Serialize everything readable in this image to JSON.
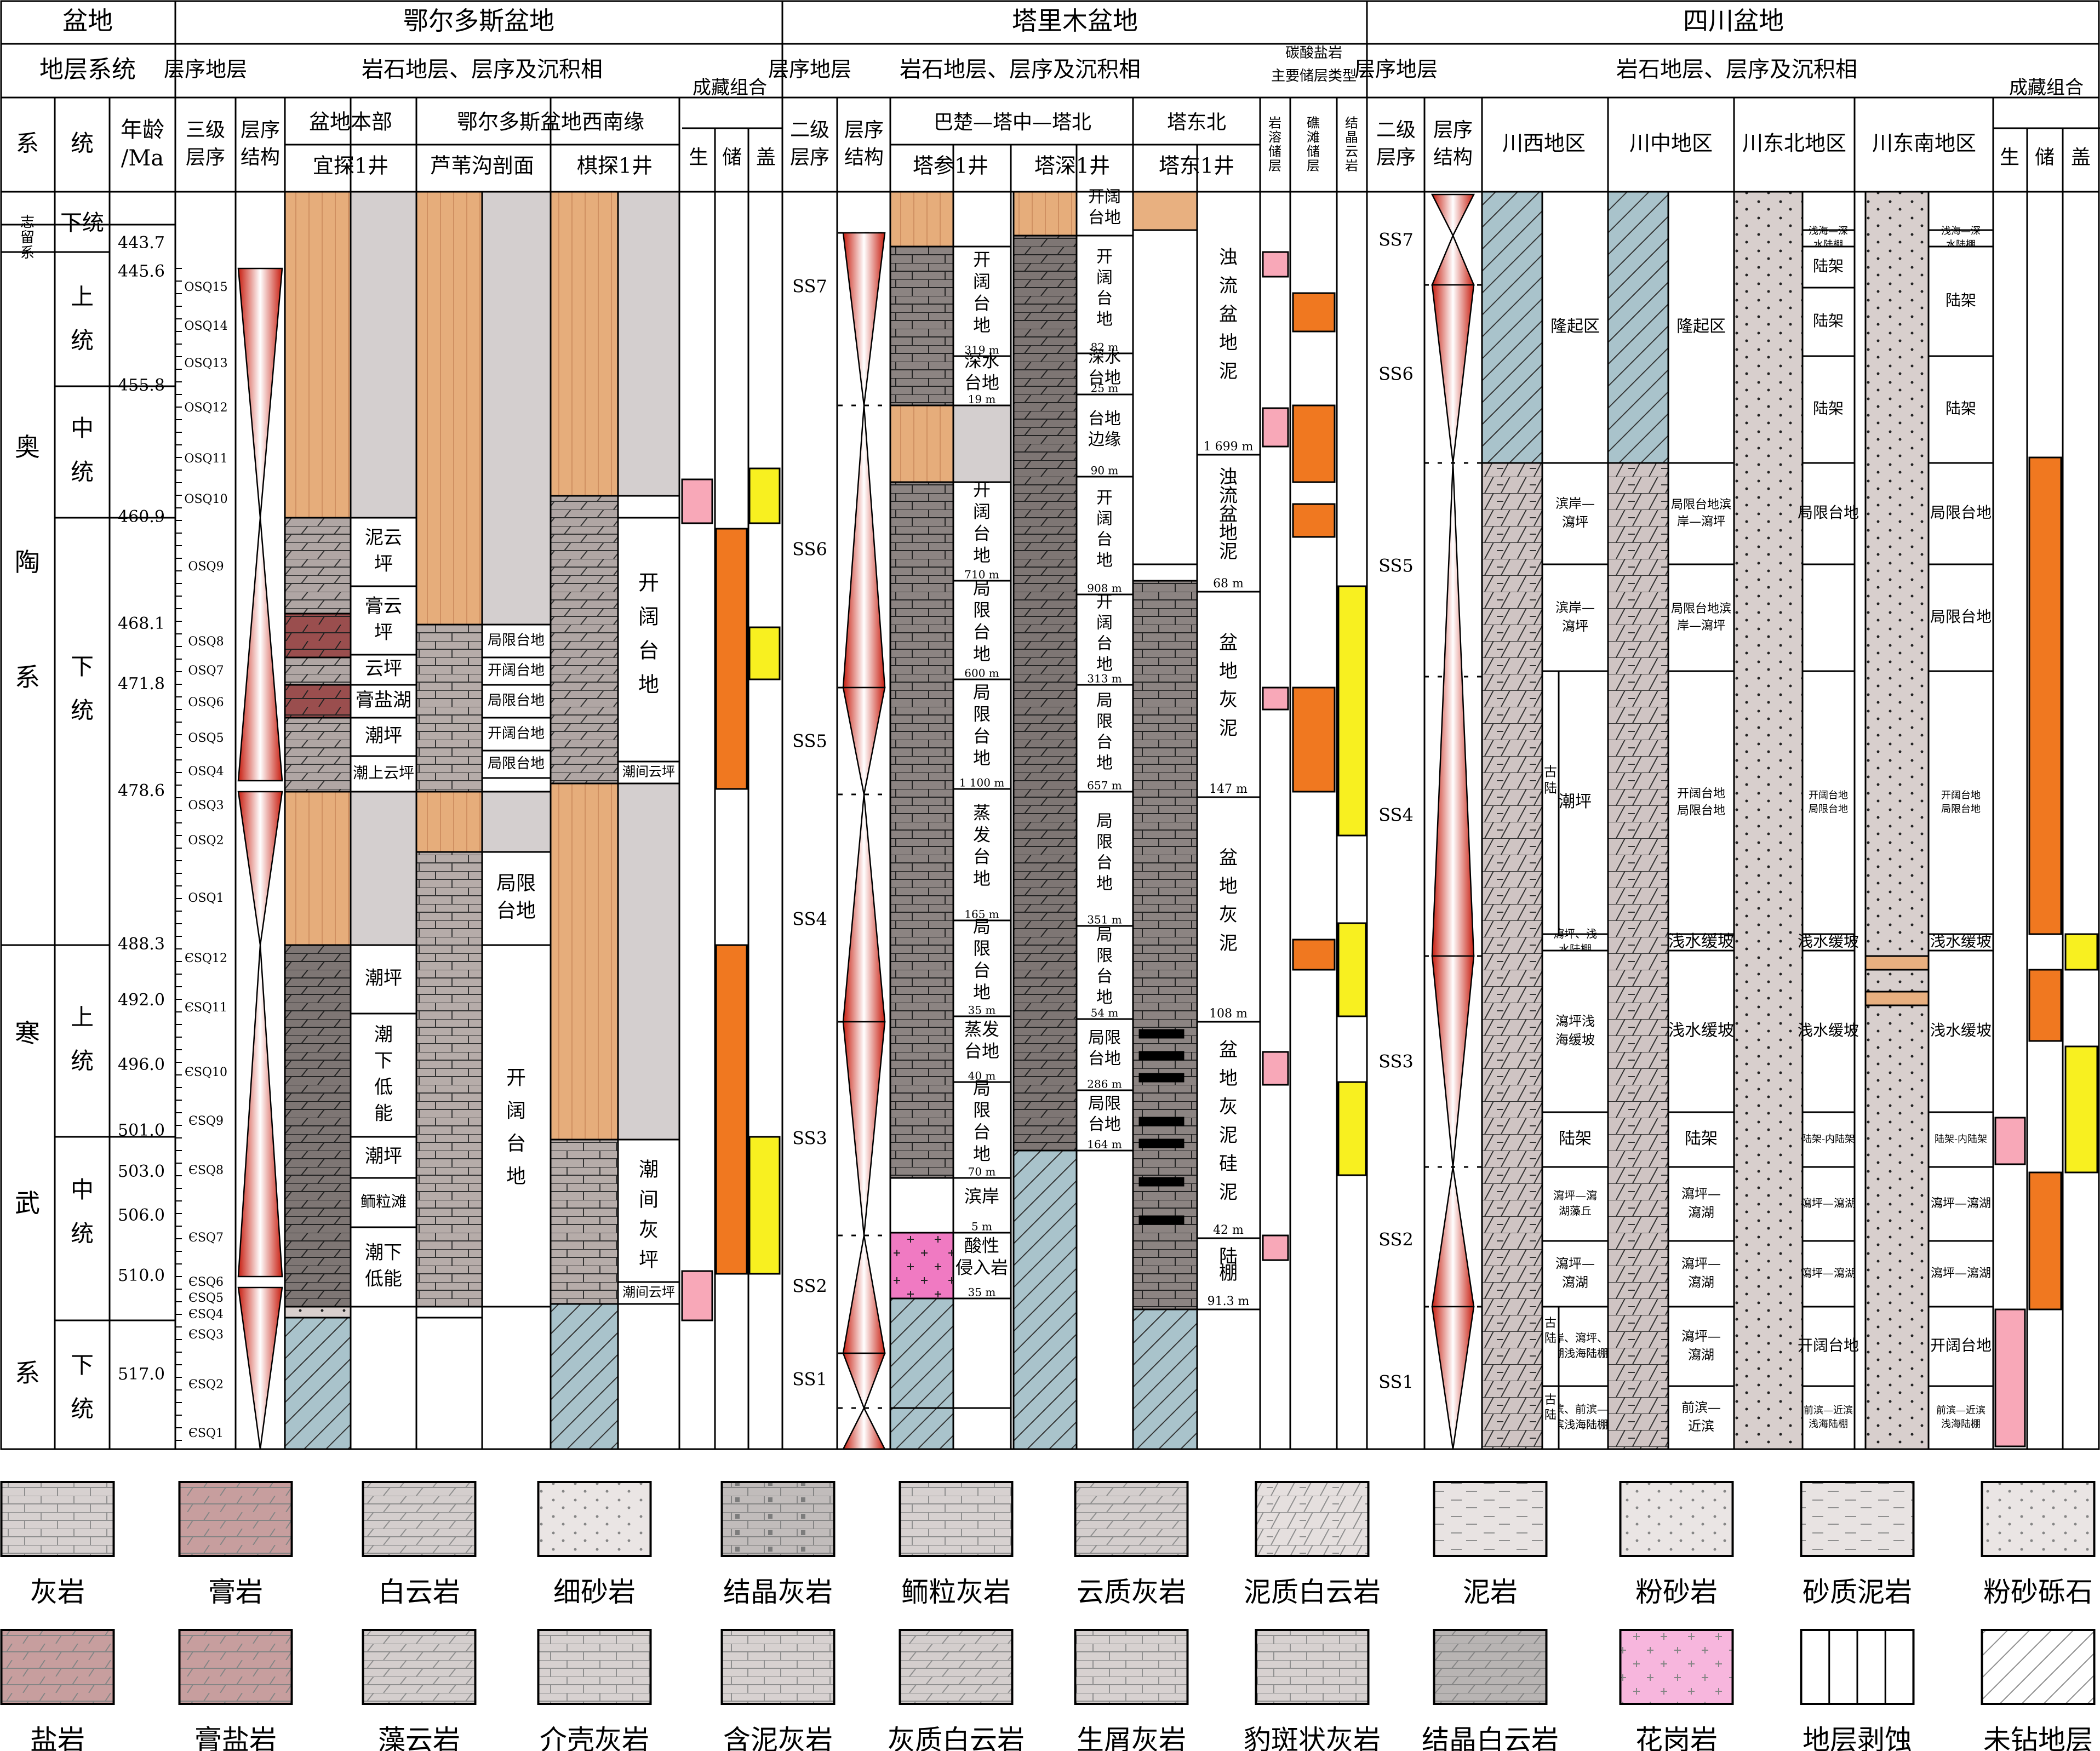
{
  "basins": {
    "ordos": "鄂尔多斯盆地",
    "tarim": "塔里木盆地",
    "sichuan": "四川盆地"
  },
  "headers": {
    "basin": "盆地",
    "strat_system": "地层系统",
    "system": "系",
    "series": "统",
    "age_1": "年龄",
    "age_2": "/Ma",
    "third_order_1": "三级",
    "third_order_2": "层序",
    "seq_struct_1": "层序",
    "seq_struct_2": "结构",
    "seq_strat": "层序地层",
    "lith_strat": "岩石地层、层序及沉积相",
    "ordos_main": "盆地本部",
    "ordos_sw": "鄂尔多斯盆地西南缘",
    "well_yitan": "宜探1井",
    "well_luwei": "芦苇沟剖面",
    "well_qitan": "棋探1井",
    "accum": "成藏组合",
    "source": "生",
    "reservoir": "储",
    "seal": "盖",
    "second_order_1": "二级",
    "second_order_2": "层序",
    "tarim_region": "巴楚—塔中—塔北",
    "tadongbei": "塔东北",
    "well_tacan": "塔参1井",
    "well_tashen": "塔深1井",
    "well_tadong": "塔东1井",
    "carb_res_1": "碳酸盐岩",
    "carb_res_2": "主要储层类型",
    "res_karst": "岩溶储层",
    "res_reef": "礁滩储层",
    "res_dolo": "结晶云岩",
    "sc_west": "川西地区",
    "sc_central": "川中地区",
    "sc_ne": "川东北地区",
    "sc_se": "川东南地区"
  },
  "systems": {
    "silurian": "志留系",
    "ordovician": [
      "奥",
      "陶",
      "系"
    ],
    "cambrian": [
      "寒",
      "武",
      "系"
    ]
  },
  "series": {
    "lower_sil": "下统",
    "upper": [
      "上",
      "统"
    ],
    "middle": [
      "中",
      "统"
    ],
    "lower": [
      "下",
      "统"
    ]
  },
  "ages": [
    "443.7",
    "445.6",
    "455.8",
    "460.9",
    "468.1",
    "471.8",
    "478.6",
    "488.3",
    "492.0",
    "496.0",
    "501.0",
    "503.0",
    "506.0",
    "510.0",
    "517.0"
  ],
  "osq": [
    "OSQ15",
    "OSQ14",
    "OSQ13",
    "OSQ12",
    "OSQ11",
    "OSQ10",
    "OSQ9",
    "OSQ8",
    "OSQ7",
    "OSQ6",
    "OSQ5",
    "OSQ4",
    "OSQ3",
    "OSQ2",
    "OSQ1"
  ],
  "esq": [
    "ЄSQ12",
    "ЄSQ11",
    "ЄSQ10",
    "ЄSQ9",
    "ЄSQ8",
    "ЄSQ7",
    "ЄSQ6",
    "ЄSQ5",
    "ЄSQ4",
    "ЄSQ3",
    "ЄSQ2",
    "ЄSQ1"
  ],
  "ss": [
    "SS7",
    "SS6",
    "SS5",
    "SS4",
    "SS3",
    "SS2",
    "SS1"
  ],
  "facies_yitan": [
    "泥云坪",
    "膏云坪",
    "云坪",
    "膏盐湖",
    "潮坪",
    "潮上云坪",
    "潮坪",
    "潮下低能",
    "潮坪",
    "鲕粒滩",
    "潮下低能"
  ],
  "facies_luwei": [
    "局限台地",
    "开阔台地",
    "局限台地",
    "开阔台地",
    "局限台地",
    "局限台地",
    "开阔台地"
  ],
  "facies_qitan": [
    "开阔台地",
    "潮间云坪",
    "潮间灰坪",
    "潮间云坪"
  ],
  "facies_tacan": [
    {
      "name": "开阔台地",
      "thick": "319 m"
    },
    {
      "name": "深水台地",
      "thick": "19 m"
    },
    {
      "name": "开阔台地",
      "thick": "710 m"
    },
    {
      "name": "局限台地",
      "thick": "600 m"
    },
    {
      "name": "局限台地",
      "thick": "1 100 m"
    },
    {
      "name": "蒸发台地",
      "thick": "165 m"
    },
    {
      "name": "局限台地",
      "thick": "35 m"
    },
    {
      "name": "蒸发台地",
      "thick": "40 m"
    },
    {
      "name": "局限台地",
      "thick": "70 m"
    },
    {
      "name": "滨岸",
      "thick": "5 m"
    },
    {
      "name": "酸性侵入岩",
      "thick": "35 m"
    }
  ],
  "facies_tashen": [
    {
      "name": "开阔台地",
      "thick": ""
    },
    {
      "name": "开阔台地",
      "thick": "82 m"
    },
    {
      "name": "深水台地",
      "thick": "25 m"
    },
    {
      "name": "台地边缘",
      "thick": "90 m"
    },
    {
      "name": "开阔台地",
      "thick": "908 m"
    },
    {
      "name": "开阔台地",
      "thick": "313 m"
    },
    {
      "name": "局限台地",
      "thick": "657 m"
    },
    {
      "name": "局限台地",
      "thick": "351 m"
    },
    {
      "name": "局限台地",
      "thick": "54 m"
    },
    {
      "name": "局限台地",
      "thick": "286 m"
    },
    {
      "name": "局限台地",
      "thick": "164 m"
    }
  ],
  "facies_tadong": [
    {
      "name": "浊流盆地泥",
      "thick": "1 699 m"
    },
    {
      "name": "浊流盆地泥",
      "thick": "68 m"
    },
    {
      "name": "盆地灰泥",
      "thick": "147 m"
    },
    {
      "name": "盆地灰泥",
      "thick": "108 m"
    },
    {
      "name": "盆地灰泥硅泥",
      "thick": "42 m"
    },
    {
      "name": "陆棚",
      "thick": "91.3 m"
    }
  ],
  "facies_sc_west": [
    "隆起区",
    "滨岸—瀉坪",
    "滨岸—瀉坪",
    "古陆",
    "潮坪",
    "瀉坪、浅水陆棚",
    "瀉坪浅海缓坡",
    "陆架",
    "瀉坪—瀉湖藻丘",
    "瀉坪—瀉湖",
    "古陆",
    "滨岸、瀉坪、瀉湖浅海陆棚",
    "古陆",
    "后滨、前滨—近滨浅海陆棚"
  ],
  "facies_sc_central": [
    "隆起区",
    "局限台地滨岸—瀉坪",
    "局限台地滨岸—瀉坪",
    "开阔台地局限台地",
    "浅水缓坡",
    "浅水缓坡",
    "陆架",
    "瀉坪—瀉湖",
    "瀉坪—瀉湖",
    "瀉坪—瀉湖",
    "前滨—近滨"
  ],
  "facies_sc_ne": [
    "浅海—深水陆棚",
    "陆架",
    "陆架",
    "陆架",
    "局限台地",
    "开阔台地局限台地",
    "浅水缓坡",
    "浅水缓坡",
    "陆架-内陆架",
    "瀉坪—瀉湖",
    "瀉坪—瀉湖",
    "开阔台地",
    "前滨—近滨浅海陆棚"
  ],
  "facies_sc_se": [
    "浅海—深水陆棚",
    "陆架",
    "陆架",
    "局限台地",
    "局限台地",
    "开阔台地局限台地",
    "浅水缓坡",
    "浅水缓坡",
    "陆架-内陆架",
    "瀉坪—瀉湖",
    "瀉坪—瀉湖",
    "开阔台地",
    "前滨—近滨浅海陆棚"
  ],
  "legend": [
    "灰岩",
    "膏岩",
    "白云岩",
    "细砂岩",
    "结晶灰岩",
    "鲕粒灰岩",
    "云质灰岩",
    "泥质白云岩",
    "泥岩",
    "粉砂岩",
    "砂质泥岩",
    "粉砂砾石",
    "盐岩",
    "膏盐岩",
    "藻云岩",
    "介壳灰岩",
    "含泥灰岩",
    "灰质白云岩",
    "生屑灰岩",
    "豹斑状灰岩",
    "结晶白云岩",
    "花岗岩",
    "地层剥蚀",
    "未钻地层"
  ],
  "colors": {
    "source": "#f8a8b8",
    "reservoir": "#f07820",
    "seal": "#f8f020",
    "eroded": "#e8b080",
    "gray": "#d4cfcf",
    "brick": "#b4aaa8",
    "dark": "#847c7a",
    "undrilled": "#a8c4cc",
    "granite": "#f078c0"
  }
}
